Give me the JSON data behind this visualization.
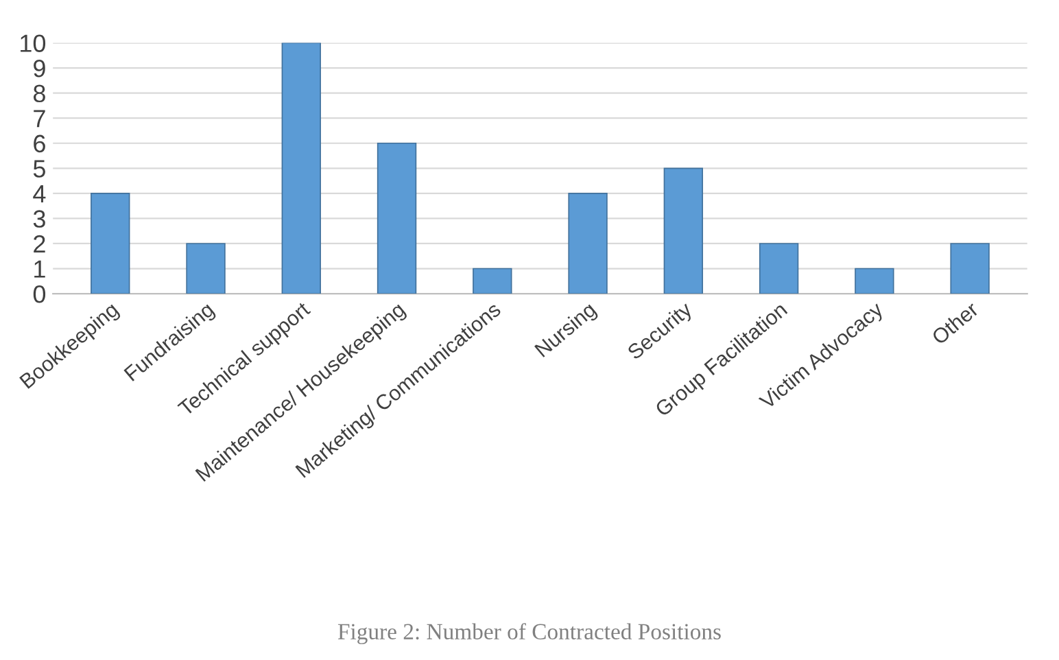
{
  "chart_data": {
    "type": "bar",
    "categories": [
      "Bookkeeping",
      "Fundraising",
      "Technical support",
      "Maintenance/ Housekeeping",
      "Marketing/ Communications",
      "Nursing",
      "Security",
      "Group Facilitation",
      "Victim Advocacy",
      "Other"
    ],
    "values": [
      4,
      2,
      10,
      6,
      1,
      4,
      5,
      2,
      1,
      2
    ],
    "color": "#5b9bd5",
    "ylim": [
      0,
      10
    ],
    "yticks": [
      0,
      1,
      2,
      3,
      4,
      5,
      6,
      7,
      8,
      9,
      10
    ],
    "grid": "y",
    "annotations": [
      "Figure 2: Number of Contracted Positions"
    ]
  }
}
